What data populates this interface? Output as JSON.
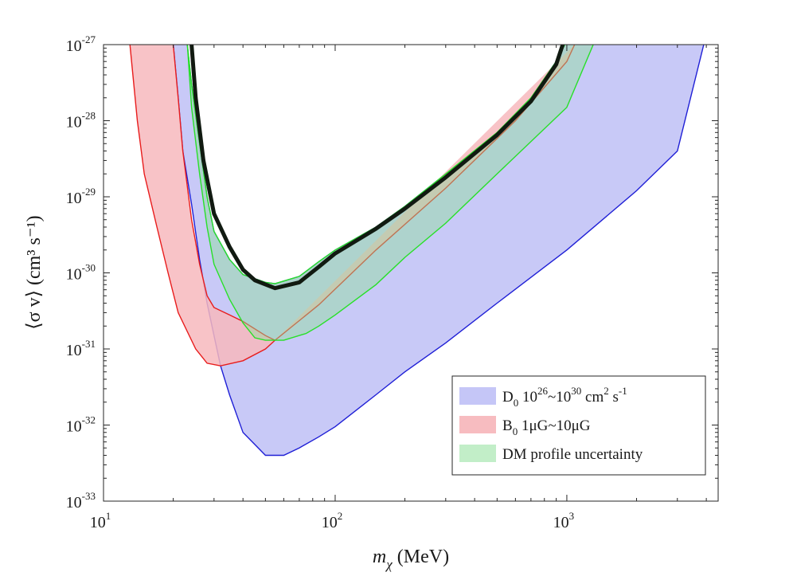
{
  "chart_data": {
    "type": "area",
    "title": "",
    "xlabel": {
      "symbol": "m",
      "subscript": "χ",
      "unit": "(MeV)"
    },
    "ylabel": {
      "text": "⟨σ v⟩ (cm³ s⁻¹)"
    },
    "xscale": "log",
    "yscale": "log",
    "xlim": [
      10,
      4500
    ],
    "ylim": [
      1e-33,
      1e-27
    ],
    "x_ticks": [
      {
        "value": 10,
        "base": "10",
        "exp": "1"
      },
      {
        "value": 100,
        "base": "10",
        "exp": "2"
      },
      {
        "value": 1000,
        "base": "10",
        "exp": "3"
      }
    ],
    "y_ticks": [
      {
        "value": 1e-27,
        "base": "10",
        "exp": "-27"
      },
      {
        "value": 1e-28,
        "base": "10",
        "exp": "-28"
      },
      {
        "value": 1e-29,
        "base": "10",
        "exp": "-29"
      },
      {
        "value": 1e-30,
        "base": "10",
        "exp": "-30"
      },
      {
        "value": 1e-31,
        "base": "10",
        "exp": "-31"
      },
      {
        "value": 1e-32,
        "base": "10",
        "exp": "-32"
      },
      {
        "value": 1e-33,
        "base": "10",
        "exp": "-33"
      }
    ],
    "series": [
      {
        "name": "D0 band",
        "legend": {
          "main": "D",
          "sub": "0",
          "text": " 10",
          "sup1": "26",
          "text2": "~10",
          "sup2": "30",
          "text3": " cm",
          "sup3": "2",
          "text4": " s",
          "sup4": "-1"
        },
        "fill": "#c5c6f7",
        "stroke": "#1f1fd6",
        "fill_opacity": 0.95,
        "upper": [
          [
            23,
            1e-27
          ],
          [
            24,
            3e-28
          ],
          [
            26,
            5e-29
          ],
          [
            28,
            1e-29
          ],
          [
            30,
            3.5e-30
          ],
          [
            35,
            1.5e-30
          ],
          [
            40,
            9.5e-31
          ],
          [
            50,
            7.5e-31
          ],
          [
            55,
            7.2e-31
          ],
          [
            70,
            9e-31
          ],
          [
            85,
            1.4e-30
          ],
          [
            100,
            2e-30
          ],
          [
            150,
            4e-30
          ],
          [
            200,
            7.5e-30
          ],
          [
            300,
            2e-29
          ],
          [
            500,
            7e-29
          ],
          [
            700,
            2e-28
          ],
          [
            900,
            6e-28
          ],
          [
            980,
            1e-27
          ]
        ],
        "lower": [
          [
            20,
            1e-27
          ],
          [
            21,
            2e-28
          ],
          [
            22,
            4e-29
          ],
          [
            24,
            8e-30
          ],
          [
            26,
            1.5e-30
          ],
          [
            28,
            4e-31
          ],
          [
            30,
            1.5e-31
          ],
          [
            32,
            6e-32
          ],
          [
            35,
            2.5e-32
          ],
          [
            40,
            8e-33
          ],
          [
            50,
            4e-33
          ],
          [
            60,
            4e-33
          ],
          [
            70,
            5e-33
          ],
          [
            85,
            7e-33
          ],
          [
            100,
            9.5e-33
          ],
          [
            150,
            2.5e-32
          ],
          [
            200,
            5e-32
          ],
          [
            300,
            1.2e-31
          ],
          [
            500,
            4e-31
          ],
          [
            1000,
            2e-30
          ],
          [
            2000,
            1.2e-29
          ],
          [
            3000,
            4e-29
          ],
          [
            3900,
            1e-27
          ]
        ]
      },
      {
        "name": "B0 band",
        "legend": {
          "main": "B",
          "sub": "0",
          "text": " 1μG~10μG"
        },
        "fill": "#f7b8bd",
        "stroke": "#e81c1c",
        "fill_opacity": 0.85,
        "upper": [
          [
            20,
            1e-27
          ],
          [
            21,
            2e-28
          ],
          [
            22,
            4e-29
          ],
          [
            24,
            5e-30
          ],
          [
            26,
            1.3e-30
          ],
          [
            28,
            5e-31
          ],
          [
            30,
            3.5e-31
          ],
          [
            35,
            2.8e-31
          ],
          [
            40,
            2.3e-31
          ],
          [
            50,
            1.5e-31
          ],
          [
            55,
            1.3e-31
          ]
        ],
        "lower": [
          [
            13,
            1e-27
          ],
          [
            14,
            1e-28
          ],
          [
            15,
            2e-29
          ],
          [
            17,
            4e-30
          ],
          [
            19,
            1e-30
          ],
          [
            21,
            3e-31
          ],
          [
            25,
            1e-31
          ],
          [
            28,
            6.5e-32
          ],
          [
            32,
            6e-32
          ],
          [
            40,
            7e-32
          ],
          [
            50,
            1e-31
          ],
          [
            55,
            1.3e-31
          ],
          [
            85,
            3.8e-31
          ],
          [
            150,
            2e-30
          ],
          [
            300,
            1.3e-29
          ],
          [
            600,
            1e-28
          ],
          [
            1000,
            6e-28
          ],
          [
            1080,
            1e-27
          ]
        ]
      },
      {
        "name": "DM profile uncertainty",
        "legend": {
          "main": "DM profile uncertainty"
        },
        "fill": "#8fe09a",
        "stroke": "#28e028",
        "fill_opacity": 0.45,
        "upper": [
          [
            23,
            1e-27
          ],
          [
            24,
            3e-28
          ],
          [
            26,
            5e-29
          ],
          [
            28,
            1e-29
          ],
          [
            30,
            3.5e-30
          ],
          [
            35,
            1.5e-30
          ],
          [
            40,
            9.5e-31
          ],
          [
            50,
            7.5e-31
          ],
          [
            55,
            7.2e-31
          ],
          [
            70,
            9e-31
          ],
          [
            85,
            1.4e-30
          ],
          [
            100,
            2e-30
          ],
          [
            150,
            4e-30
          ],
          [
            200,
            7.5e-30
          ],
          [
            300,
            2e-29
          ],
          [
            500,
            7e-29
          ],
          [
            700,
            2e-28
          ],
          [
            900,
            6e-28
          ],
          [
            980,
            1e-27
          ]
        ],
        "lower": [
          [
            23,
            1e-27
          ],
          [
            24,
            1.5e-28
          ],
          [
            26,
            2e-29
          ],
          [
            28,
            4e-30
          ],
          [
            30,
            1.3e-30
          ],
          [
            35,
            4.5e-31
          ],
          [
            40,
            2.2e-31
          ],
          [
            45,
            1.4e-31
          ],
          [
            50,
            1.3e-31
          ],
          [
            60,
            1.3e-31
          ],
          [
            75,
            1.6e-31
          ],
          [
            85,
            2e-31
          ],
          [
            100,
            2.8e-31
          ],
          [
            150,
            7e-31
          ],
          [
            200,
            1.6e-30
          ],
          [
            300,
            4.5e-30
          ],
          [
            500,
            2e-29
          ],
          [
            1000,
            1.5e-28
          ],
          [
            1300,
            1e-27
          ]
        ]
      }
    ],
    "central_line": {
      "name": "benchmark constraint",
      "color": "#111a11",
      "points": [
        [
          24,
          1e-27
        ],
        [
          25,
          2e-28
        ],
        [
          27,
          3e-29
        ],
        [
          30,
          6e-30
        ],
        [
          35,
          2.2e-30
        ],
        [
          40,
          1.1e-30
        ],
        [
          45,
          8e-31
        ],
        [
          55,
          6.3e-31
        ],
        [
          70,
          7.5e-31
        ],
        [
          85,
          1.2e-30
        ],
        [
          100,
          1.8e-30
        ],
        [
          150,
          3.8e-30
        ],
        [
          200,
          7e-30
        ],
        [
          300,
          1.8e-29
        ],
        [
          500,
          6.5e-29
        ],
        [
          700,
          1.8e-28
        ],
        [
          900,
          5.5e-28
        ],
        [
          960,
          1e-27
        ]
      ]
    },
    "legend_location": "lower-right"
  }
}
